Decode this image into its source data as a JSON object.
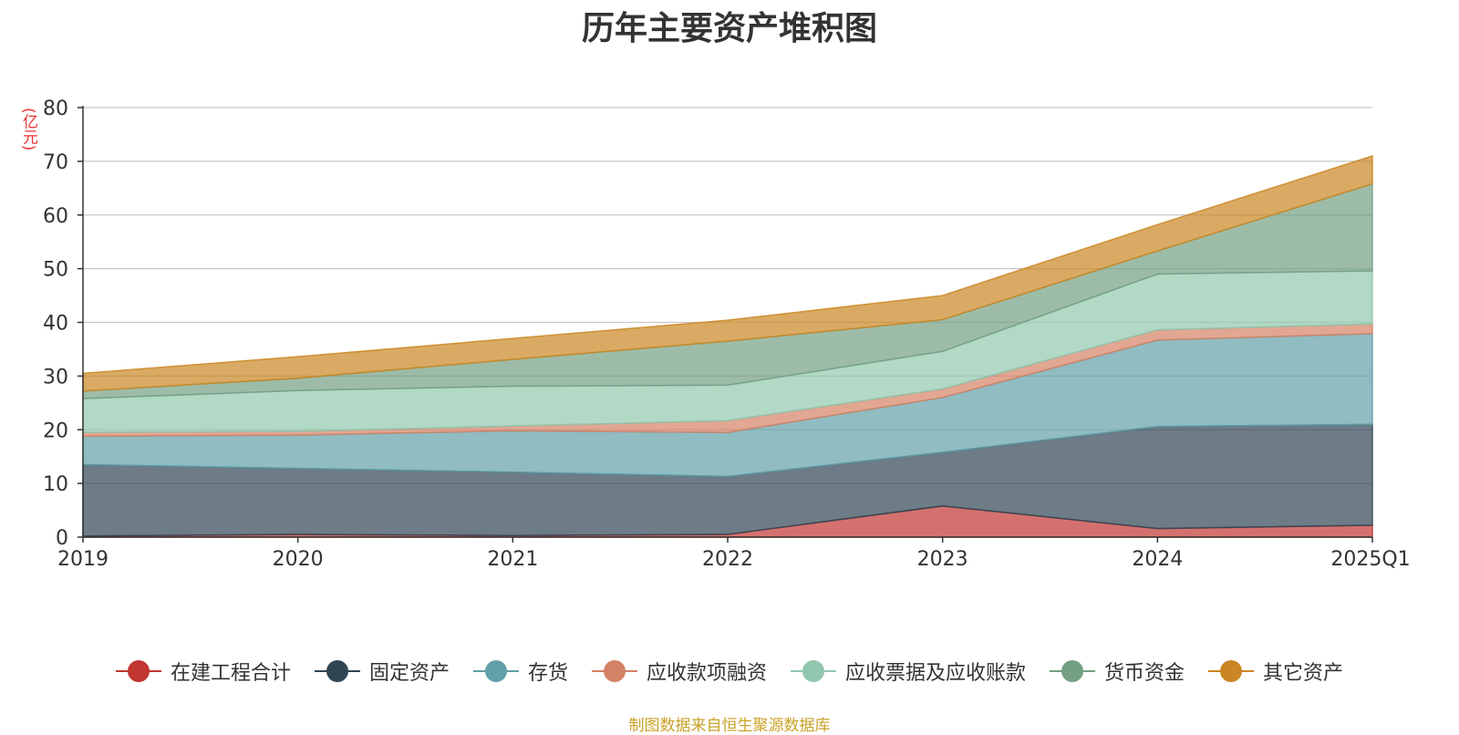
{
  "title": "历年主要资产堆积图",
  "unit": "(亿元)",
  "source": "制图数据来自恒生聚源数据库",
  "chart_data": {
    "type": "area",
    "stacked": true,
    "title": "历年主要资产堆积图",
    "ylabel": "(亿元)",
    "categories": [
      "2019",
      "2020",
      "2021",
      "2022",
      "2023",
      "2024",
      "2025Q1"
    ],
    "ylim": [
      0,
      80
    ],
    "yticks": [
      0,
      10,
      20,
      30,
      40,
      50,
      60,
      70,
      80
    ],
    "grid": true,
    "legend_position": "bottom",
    "series": [
      {
        "name": "在建工程合计",
        "color": "#c23531",
        "values": [
          0.2,
          0.5,
          0.3,
          0.5,
          5.8,
          1.6,
          2.2
        ]
      },
      {
        "name": "固定资产",
        "color": "#2f4554",
        "values": [
          13.3,
          12.3,
          11.8,
          10.8,
          10.0,
          19.0,
          18.8
        ]
      },
      {
        "name": "存货",
        "color": "#61a0a8",
        "values": [
          5.3,
          6.2,
          7.7,
          8.2,
          10.2,
          16.1,
          16.9
        ]
      },
      {
        "name": "应收款项融资",
        "color": "#d48265",
        "values": [
          0.7,
          0.7,
          0.9,
          2.2,
          1.6,
          1.9,
          1.8
        ]
      },
      {
        "name": "应收票据及应收账款",
        "color": "#91c7ae",
        "values": [
          6.3,
          7.6,
          7.4,
          6.6,
          7.0,
          10.4,
          9.9
        ]
      },
      {
        "name": "货币资金",
        "color": "#749f83",
        "values": [
          1.4,
          2.3,
          5.0,
          8.2,
          5.9,
          4.3,
          16.2
        ]
      },
      {
        "name": "其它资产",
        "color": "#ca8622",
        "values": [
          3.3,
          4.0,
          3.9,
          3.9,
          4.5,
          4.9,
          5.2
        ]
      }
    ]
  }
}
